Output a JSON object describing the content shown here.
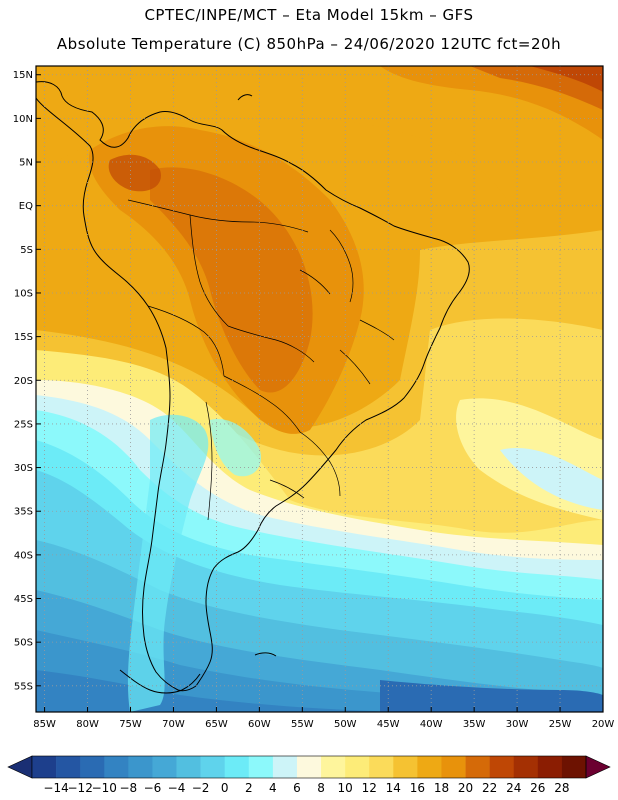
{
  "header": {
    "line1": "CPTEC/INPE/MCT –  Eta Model 15km – GFS",
    "line2": "Absolute Temperature (C) 850hPa – 24/06/2020 12UTC fct=20h"
  },
  "map": {
    "lat_labels": [
      "15N",
      "10N",
      "5N",
      "EQ",
      "5S",
      "10S",
      "15S",
      "20S",
      "25S",
      "30S",
      "35S",
      "40S",
      "45S",
      "50S",
      "55S"
    ],
    "lon_labels": [
      "85W",
      "80W",
      "75W",
      "70W",
      "65W",
      "60W",
      "55W",
      "50W",
      "45W",
      "40W",
      "35W",
      "30W",
      "25W",
      "20W"
    ],
    "lat_range": [
      -58,
      16
    ],
    "lon_range": [
      -86,
      -20
    ],
    "grid": "dotted"
  },
  "colorbar": {
    "labels": [
      "-14",
      "-12",
      "-10",
      "-8",
      "-6",
      "-4",
      "-2",
      "0",
      "2",
      "4",
      "6",
      "8",
      "10",
      "12",
      "14",
      "16",
      "18",
      "20",
      "22",
      "24",
      "26",
      "28"
    ],
    "colors": [
      "#1d3f8c",
      "#2456a3",
      "#2a6bb3",
      "#3383c2",
      "#3b96cc",
      "#45a8d6",
      "#52bfe0",
      "#5fd3ec",
      "#6cebf7",
      "#8cf9fb",
      "#cdf4f8",
      "#fdf9dd",
      "#fef59c",
      "#fdec78",
      "#fbdb5a",
      "#f5c232",
      "#eea914",
      "#e8920b",
      "#d56a08",
      "#bf4705",
      "#a43003",
      "#8b1d02",
      "#6d1201"
    ],
    "min_arrow_color": "#1a2f74",
    "max_arrow_color": "#6b0030"
  }
}
